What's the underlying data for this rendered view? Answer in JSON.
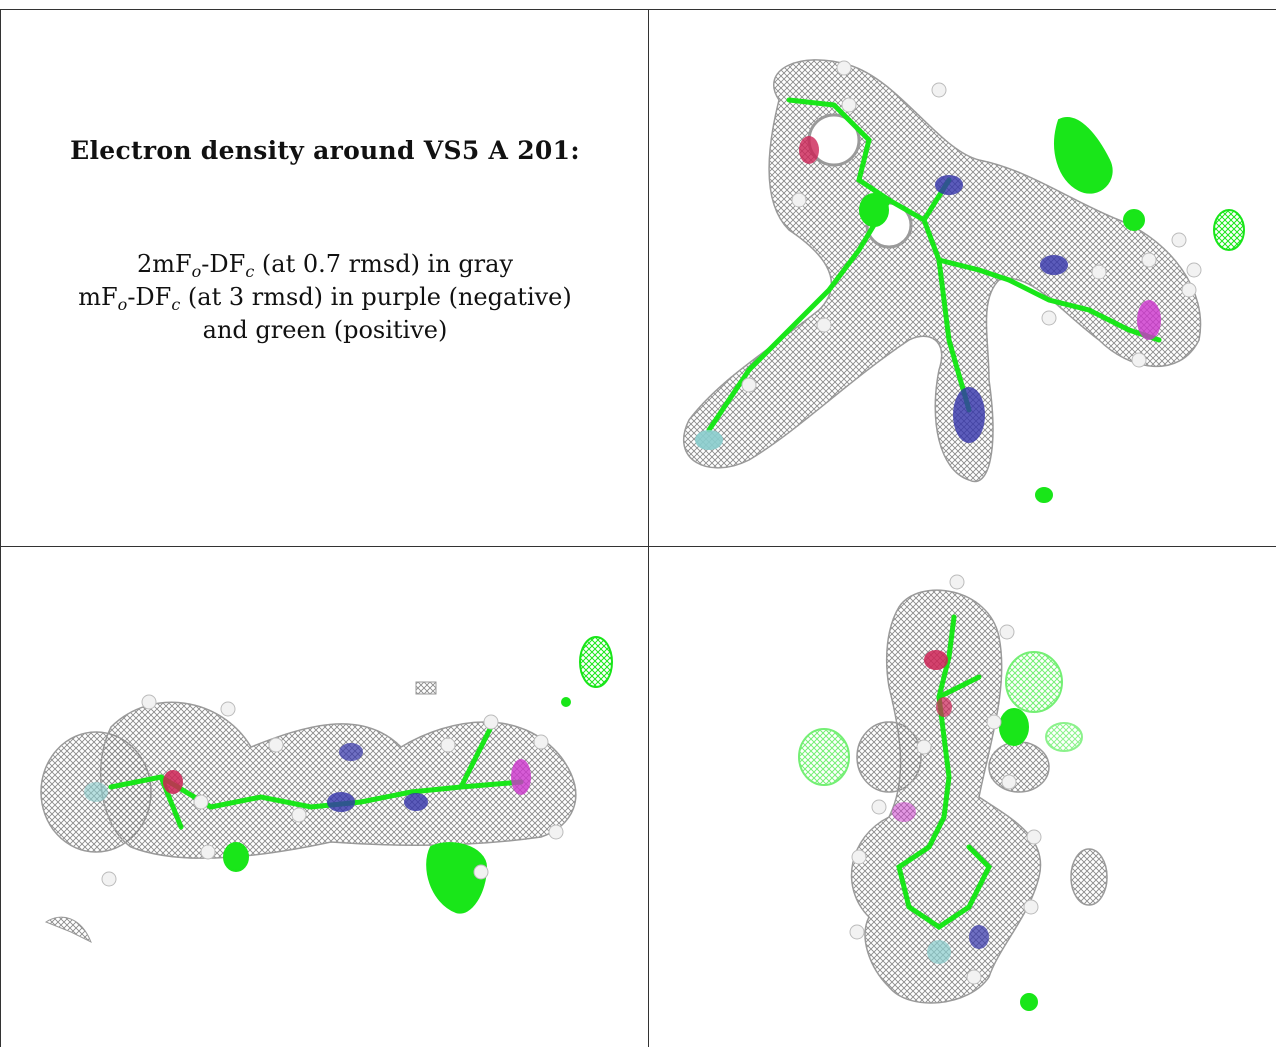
{
  "panel_text": {
    "title": "Electron density around VS5 A 201:",
    "line1_prefix": "2mF",
    "line1_sub_o": "o",
    "line1_mid": "-DF",
    "line1_sub_c": "c",
    "line1_suffix": " (at 0.7 rmsd) in gray",
    "line2_prefix": "mF",
    "line2_sub_o": "o",
    "line2_mid": "-DF",
    "line2_sub_c": "c",
    "line2_suffix": " (at 3 rmsd) in purple (negative)",
    "line3": "and green (positive)"
  },
  "colors": {
    "density_gray": "#8a8a8a",
    "positive_green": "#19e619",
    "negative_purple": "#cc33cc",
    "nitrogen_blue": "#3333aa",
    "oxygen_red": "#cc2255",
    "fluorine_cyan": "#88cccc",
    "hydrogen_white": "#f2f2f2"
  }
}
